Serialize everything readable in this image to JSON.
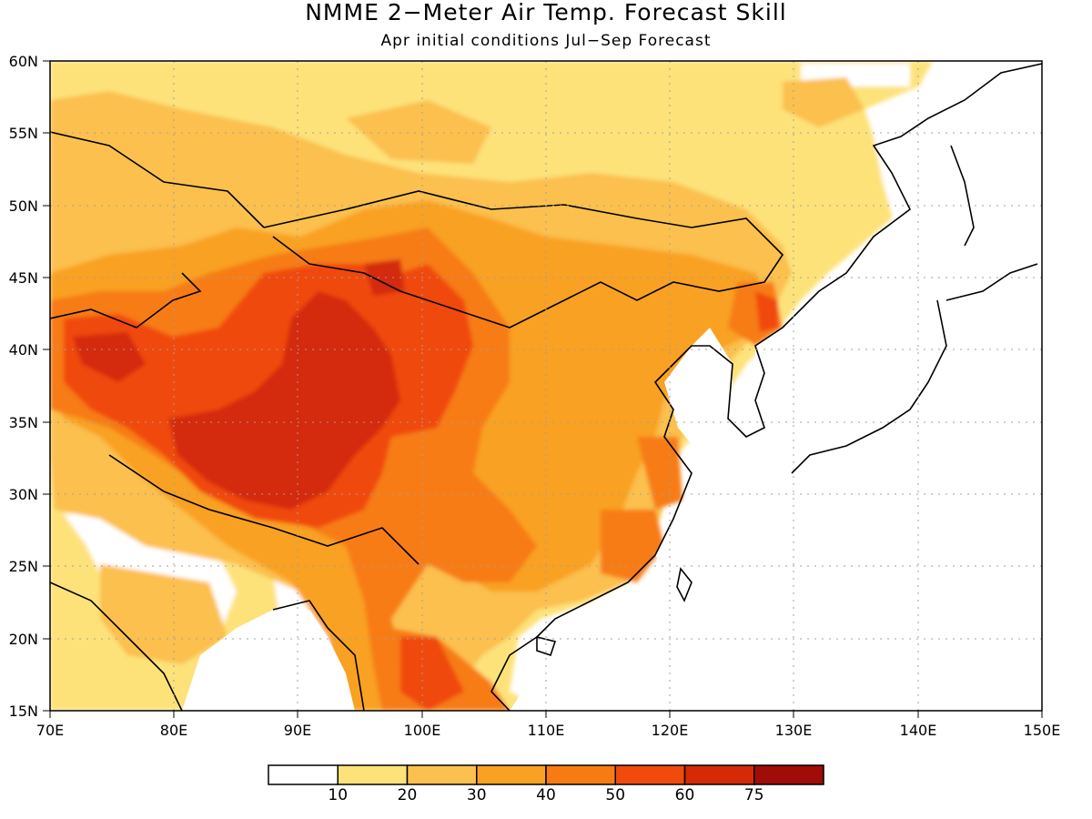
{
  "title": "NMME 2−Meter Air Temp. Forecast Skill",
  "subtitle": "Apr initial conditions  Jul−Sep Forecast",
  "map": {
    "lon_range": [
      70,
      150
    ],
    "lat_range": [
      15,
      60
    ],
    "lon_ticks": [
      "70E",
      "80E",
      "90E",
      "100E",
      "110E",
      "120E",
      "130E",
      "140E",
      "150E"
    ],
    "lat_ticks": [
      "15N",
      "20N",
      "25N",
      "30N",
      "35N",
      "40N",
      "45N",
      "50N",
      "55N",
      "60N"
    ],
    "gridlines": "dotted",
    "land_mask": "white over ocean"
  },
  "colorbar": {
    "colors": [
      "#ffffff",
      "#fde27a",
      "#fbc04e",
      "#f9a120",
      "#f77b12",
      "#f04a0c",
      "#d42a08",
      "#a00c08"
    ],
    "labels": [
      "10",
      "20",
      "30",
      "40",
      "50",
      "60",
      "75"
    ]
  }
}
